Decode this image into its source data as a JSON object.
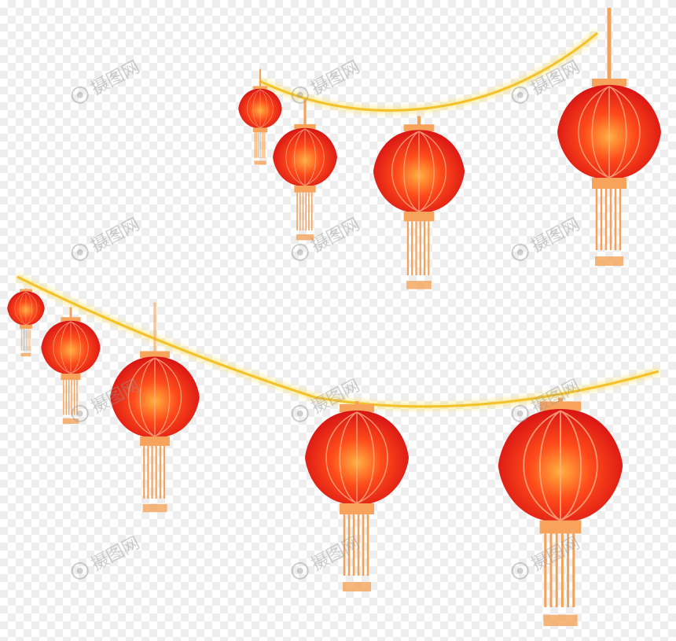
{
  "watermark": {
    "text": "摄图网",
    "icon": "camera-lens-icon"
  },
  "colors": {
    "lantern_center": "#ffb040",
    "lantern_mid": "#ff4a1a",
    "lantern_edge": "#d81414",
    "lantern_ribs": "#ffb38a",
    "cap": "#f7a35c",
    "tassel": "#f4a259",
    "string_glow": "#ffe36a",
    "string_core": "#f3c22b"
  },
  "lanterns": {
    "upper_row_count": 4,
    "lower_row_count": 5
  }
}
